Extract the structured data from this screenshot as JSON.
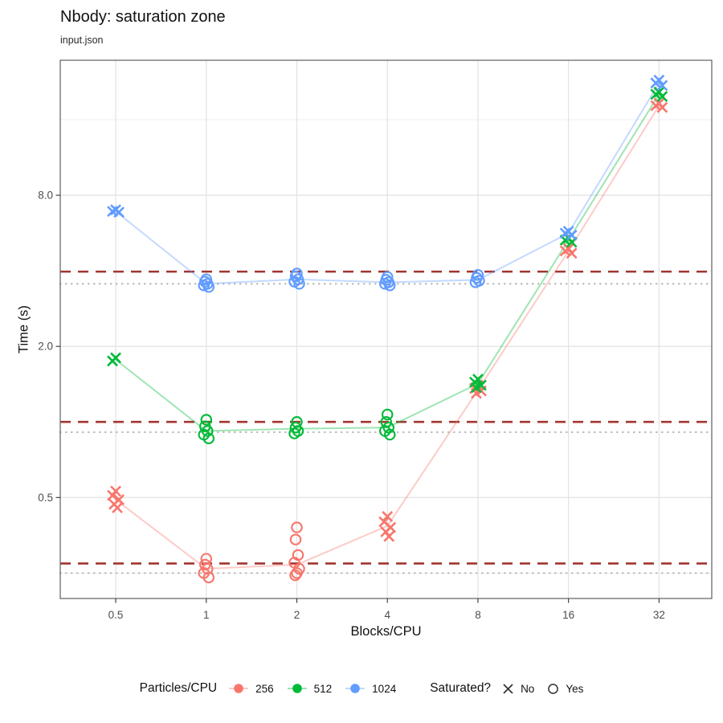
{
  "title": "Nbody: saturation zone",
  "subtitle": "input.json",
  "chart_data": {
    "type": "scatter",
    "title": "Nbody: saturation zone",
    "subtitle": "input.json",
    "xlabel": "Blocks/CPU",
    "ylabel": "Time (s)",
    "x_scale": "log2",
    "y_scale": "log2",
    "grid": true,
    "x": [
      0.5,
      1,
      2,
      4,
      8,
      16,
      32
    ],
    "x_ticks": [
      0.5,
      1,
      2,
      4,
      8,
      16,
      32
    ],
    "x_tick_labels": [
      "0.5",
      "1",
      "2",
      "4",
      "8",
      "16",
      "32"
    ],
    "y_ticks": [
      0.5,
      2.0,
      8.0
    ],
    "y_tick_labels": [
      "0.5",
      "2.0",
      "8.0"
    ],
    "y_minor_ticks": [
      0.25,
      1.0,
      4.0,
      16.0
    ],
    "x_range": [
      0.327,
      47.9
    ],
    "y_range": [
      0.198,
      27.6
    ],
    "ref_lines": {
      "dashed_color": "#A13530",
      "dotted_color": "#BDBDBD",
      "dashed_y": [
        3.97,
        1.0,
        0.273
      ],
      "dotted_y": [
        3.55,
        0.91,
        0.25
      ]
    },
    "series": [
      {
        "name": "256",
        "color": "#F8766D",
        "line": [
          0.49,
          0.26,
          0.27,
          0.385,
          1.34,
          4.8,
          18.2
        ],
        "clusters": [
          {
            "x": 0.5,
            "shape": "x",
            "values": [
              0.53,
              0.51,
              0.49,
              0.47,
              0.455
            ]
          },
          {
            "x": 1,
            "shape": "circle",
            "values": [
              0.285,
              0.27,
              0.26,
              0.25,
              0.24
            ]
          },
          {
            "x": 2,
            "shape": "circle",
            "values": [
              0.38,
              0.34,
              0.295,
              0.275,
              0.26,
              0.25,
              0.245
            ]
          },
          {
            "x": 4,
            "shape": "x",
            "values": [
              0.42,
              0.4,
              0.38,
              0.365,
              0.35
            ]
          },
          {
            "x": 8,
            "shape": "x",
            "values": [
              1.4,
              1.36,
              1.33,
              1.3
            ]
          },
          {
            "x": 16,
            "shape": "x",
            "values": [
              4.9,
              4.8,
              4.7
            ]
          },
          {
            "x": 32,
            "shape": "x",
            "values": [
              18.6,
              18.2,
              17.9
            ]
          }
        ]
      },
      {
        "name": "512",
        "color": "#00BA38",
        "line": [
          1.77,
          0.92,
          0.94,
          0.95,
          1.42,
          5.3,
          20.2
        ],
        "clusters": [
          {
            "x": 0.5,
            "shape": "x",
            "values": [
              1.8,
              1.75
            ]
          },
          {
            "x": 1,
            "shape": "circle",
            "values": [
              1.02,
              0.96,
              0.92,
              0.89,
              0.86
            ]
          },
          {
            "x": 2,
            "shape": "circle",
            "values": [
              1.0,
              0.95,
              0.92,
              0.9
            ]
          },
          {
            "x": 4,
            "shape": "circle",
            "values": [
              1.07,
              1.0,
              0.95,
              0.92,
              0.89
            ]
          },
          {
            "x": 8,
            "shape": "x",
            "values": [
              1.48,
              1.44,
              1.4,
              1.37
            ]
          },
          {
            "x": 16,
            "shape": "x",
            "values": [
              5.4,
              5.3,
              5.2
            ]
          },
          {
            "x": 32,
            "shape": "x",
            "values": [
              20.6,
              20.2,
              19.8
            ]
          }
        ]
      },
      {
        "name": "1024",
        "color": "#619CFF",
        "line": [
          6.9,
          3.55,
          3.7,
          3.6,
          3.68,
          5.65,
          22.4
        ],
        "clusters": [
          {
            "x": 0.5,
            "shape": "x",
            "values": [
              7.0,
              6.9,
              6.85
            ]
          },
          {
            "x": 1,
            "shape": "circle",
            "values": [
              3.7,
              3.62,
              3.55,
              3.5,
              3.45
            ]
          },
          {
            "x": 2,
            "shape": "circle",
            "values": [
              3.9,
              3.8,
              3.7,
              3.62,
              3.55
            ]
          },
          {
            "x": 4,
            "shape": "circle",
            "values": [
              3.78,
              3.68,
              3.6,
              3.55,
              3.5
            ]
          },
          {
            "x": 8,
            "shape": "circle",
            "values": [
              3.85,
              3.75,
              3.65,
              3.6
            ]
          },
          {
            "x": 16,
            "shape": "x",
            "values": [
              5.75,
              5.65,
              5.55
            ]
          },
          {
            "x": 32,
            "shape": "x",
            "values": [
              23.0,
              22.4,
              21.9
            ]
          }
        ]
      }
    ]
  },
  "legend": {
    "color_title": "Particles/CPU",
    "color_items": [
      {
        "label": "256",
        "color": "#F8766D"
      },
      {
        "label": "512",
        "color": "#00BA38"
      },
      {
        "label": "1024",
        "color": "#619CFF"
      }
    ],
    "shape_title": "Saturated?",
    "shape_items": [
      {
        "label": "No",
        "shape": "x"
      },
      {
        "label": "Yes",
        "shape": "circle"
      }
    ]
  },
  "style": {
    "grid_major": "#e4e4e4",
    "grid_minor": "#efefef",
    "panel_border": "#6b6b6b",
    "tick_color": "#333333",
    "tick_label_color": "#4d4d4d"
  }
}
